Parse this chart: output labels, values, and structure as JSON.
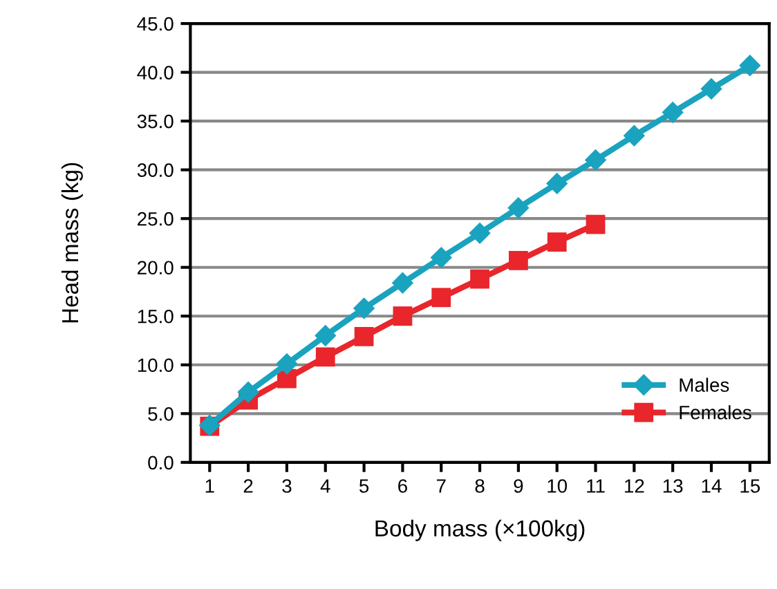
{
  "chart_data": {
    "type": "line",
    "xlabel": "Body mass (×100kg)",
    "ylabel": "Head mass (kg)",
    "categories": [
      "1",
      "2",
      "3",
      "4",
      "5",
      "6",
      "7",
      "8",
      "9",
      "10",
      "11",
      "12",
      "13",
      "14",
      "15"
    ],
    "series": [
      {
        "name": "Males",
        "color": "#1aa3bf",
        "marker": "diamond",
        "values": [
          3.8,
          7.2,
          10.1,
          13.0,
          15.8,
          18.4,
          21.0,
          23.5,
          26.1,
          28.6,
          31.0,
          33.5,
          35.9,
          38.3,
          40.7
        ]
      },
      {
        "name": "Females",
        "color": "#e8262b",
        "marker": "square",
        "values": [
          3.7,
          6.4,
          8.6,
          10.8,
          12.9,
          15.0,
          16.9,
          18.8,
          20.7,
          22.6,
          24.4,
          null,
          null,
          null,
          null
        ]
      }
    ],
    "ylim": [
      0,
      45
    ],
    "yticks": [
      {
        "value": 0,
        "label": "0.0"
      },
      {
        "value": 5,
        "label": "5.0"
      },
      {
        "value": 10,
        "label": "10.0"
      },
      {
        "value": 15,
        "label": "15.0"
      },
      {
        "value": 20,
        "label": "20.0"
      },
      {
        "value": 25,
        "label": "25.0"
      },
      {
        "value": 30,
        "label": "30.0"
      },
      {
        "value": 35,
        "label": "35.0"
      },
      {
        "value": 40,
        "label": "40.0"
      },
      {
        "value": 45,
        "label": "45.0"
      }
    ],
    "grid": "y",
    "legend": "bottom right",
    "line_style": "solid"
  }
}
